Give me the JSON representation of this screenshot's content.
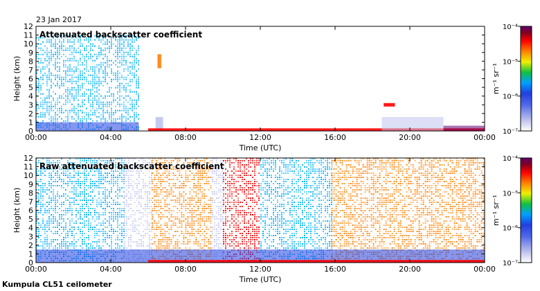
{
  "figure": {
    "date": "23 Jan 2017",
    "footer": "Kumpula CL51 ceilometer"
  },
  "colorbar": {
    "unit": "m⁻¹ sr⁻¹",
    "scale": "log",
    "range": [
      1e-07,
      0.0001
    ],
    "tick_labels": [
      "10⁻⁴",
      "10⁻⁵",
      "10⁻⁶",
      "10⁻⁷"
    ],
    "colors": [
      "#ffffff",
      "#c0c4ee",
      "#2040e0",
      "#00b0ff",
      "#10c040",
      "#f0f000",
      "#ff8000",
      "#ff0000",
      "#800020",
      "#600070"
    ]
  },
  "chart_data": [
    {
      "type": "heatmap",
      "title": "Attenuated backscatter coefficient",
      "xlabel": "Time (UTC)",
      "ylabel": "Height (km)",
      "xlim": [
        "00:00",
        "24:00"
      ],
      "ylim": [
        0,
        12
      ],
      "x_tick_labels": [
        "00:00",
        "04:00",
        "08:00",
        "12:00",
        "16:00",
        "20:00",
        "00:00"
      ],
      "y_tick_labels": [
        "0",
        "1",
        "2",
        "3",
        "4",
        "5",
        "6",
        "7",
        "8",
        "9",
        "10",
        "11",
        "12"
      ],
      "features": [
        {
          "kind": "noise",
          "time_start_h": 0.0,
          "time_end_h": 5.5,
          "height_top_km": 11.0,
          "level": "1e-6"
        },
        {
          "kind": "boundary_layer",
          "time_start_h": 0.0,
          "time_end_h": 5.5,
          "height_top_km": 1.0,
          "level": "5e-7"
        },
        {
          "kind": "aerosol",
          "time_start_h": 6.5,
          "time_end_h": 6.7,
          "height_bottom_km": 7.2,
          "height_top_km": 8.8,
          "level": "1e-5"
        },
        {
          "kind": "aerosol",
          "time_start_h": 6.4,
          "time_end_h": 6.8,
          "height_bottom_km": 0.0,
          "height_top_km": 1.6,
          "level": "3e-7"
        },
        {
          "kind": "surface",
          "time_start_h": 6.0,
          "time_end_h": 24.0,
          "height_top_km": 0.3,
          "level": "3e-5"
        },
        {
          "kind": "aerosol",
          "time_start_h": 18.6,
          "time_end_h": 19.2,
          "height_bottom_km": 2.8,
          "height_top_km": 3.2,
          "level": "3e-5"
        },
        {
          "kind": "boundary_layer",
          "time_start_h": 18.5,
          "time_end_h": 21.8,
          "height_top_km": 1.6,
          "level": "3e-7"
        },
        {
          "kind": "boundary_layer",
          "time_start_h": 21.8,
          "time_end_h": 24.0,
          "height_top_km": 0.6,
          "level": "1e-4"
        }
      ]
    },
    {
      "type": "heatmap",
      "title": "Raw attenuated backscatter coefficient",
      "xlabel": "Time (UTC)",
      "ylabel": "Height (km)",
      "xlim": [
        "00:00",
        "24:00"
      ],
      "ylim": [
        0,
        12
      ],
      "x_tick_labels": [
        "00:00",
        "04:00",
        "08:00",
        "12:00",
        "16:00",
        "20:00",
        "00:00"
      ],
      "y_tick_labels": [
        "0",
        "1",
        "2",
        "3",
        "4",
        "5",
        "6",
        "7",
        "8",
        "9",
        "10",
        "11",
        "12"
      ],
      "features": [
        {
          "kind": "noise",
          "time_start_h": 0.0,
          "time_end_h": 4.7,
          "height_top_km": 12.0,
          "level": "1e-6"
        },
        {
          "kind": "noise",
          "time_start_h": 4.7,
          "time_end_h": 6.2,
          "height_top_km": 12.0,
          "level": "3e-7"
        },
        {
          "kind": "noise",
          "time_start_h": 6.2,
          "time_end_h": 9.4,
          "height_top_km": 12.0,
          "level": "1e-5"
        },
        {
          "kind": "noise",
          "time_start_h": 9.4,
          "time_end_h": 10.0,
          "height_top_km": 12.0,
          "level": "3e-7"
        },
        {
          "kind": "noise",
          "time_start_h": 10.0,
          "time_end_h": 12.0,
          "height_top_km": 12.0,
          "level": "3e-5"
        },
        {
          "kind": "noise",
          "time_start_h": 12.0,
          "time_end_h": 15.8,
          "height_top_km": 12.0,
          "level": "1e-6"
        },
        {
          "kind": "noise",
          "time_start_h": 15.8,
          "time_end_h": 24.0,
          "height_top_km": 12.0,
          "level": "1e-5"
        },
        {
          "kind": "boundary_layer",
          "time_start_h": 0.0,
          "time_end_h": 24.0,
          "height_top_km": 1.5,
          "level": "5e-7"
        },
        {
          "kind": "surface",
          "time_start_h": 6.0,
          "time_end_h": 24.0,
          "height_top_km": 0.3,
          "level": "3e-5"
        }
      ]
    }
  ]
}
